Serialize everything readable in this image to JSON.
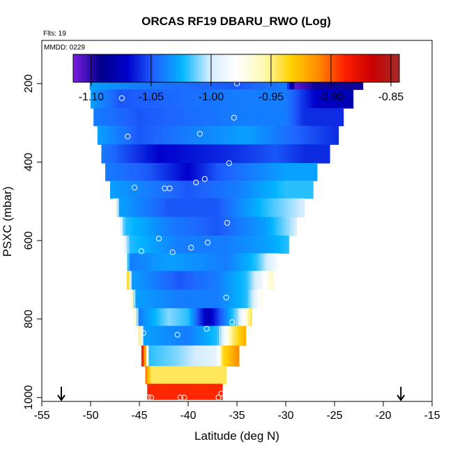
{
  "chart_data": {
    "type": "heatmap",
    "title": "ORCAS RF19 DBARU_RWO (Log)",
    "flights_label": "Flts: 19",
    "date_label": "MMDD: 0229",
    "xlabel": "Latitude (deg N)",
    "ylabel": "PSXC (mbar)",
    "xlim": [
      -55,
      -15
    ],
    "ylim": [
      1010,
      90
    ],
    "x_ticks": [
      "-55",
      "-50",
      "-45",
      "-40",
      "-35",
      "-30",
      "-25",
      "-20",
      "-15"
    ],
    "y_ticks": [
      "200",
      "400",
      "600",
      "800",
      "1000"
    ],
    "colorbar": {
      "range": [
        -1.115,
        -0.843
      ],
      "tick_values": [
        -1.1,
        -1.05,
        -1.0,
        -0.95,
        -0.9,
        -0.85
      ],
      "tick_labels": [
        "-1.10",
        "-1.05",
        "-1.00",
        "-0.95",
        "-0.90",
        "-0.85"
      ],
      "colors": [
        "#7a1fe0",
        "#00008b",
        "#0000cd",
        "#1e64ff",
        "#00b4ff",
        "#d2ecff",
        "#ffffff",
        "#fffab4",
        "#ffd200",
        "#ff8c00",
        "#ff1e00",
        "#c80000",
        "#a52a2a"
      ]
    },
    "arrows": [
      -53,
      -18.2
    ],
    "rows": [
      {
        "p": 190,
        "x0": -50.1,
        "x1": -22.1,
        "stops": [
          [
            -50.1,
            -1.03
          ],
          [
            -45,
            -1.04
          ],
          [
            -35,
            -1.05
          ],
          [
            -30,
            -1.04
          ],
          [
            -29,
            -1.11
          ],
          [
            -27,
            -1.095
          ],
          [
            -22.1,
            -1.095
          ]
        ]
      },
      {
        "p": 240,
        "x0": -50.0,
        "x1": -23.1,
        "stops": [
          [
            -50,
            -1.03
          ],
          [
            -47,
            -1.05
          ],
          [
            -35,
            -1.04
          ],
          [
            -30,
            -1.04
          ],
          [
            -27,
            -1.07
          ],
          [
            -23.1,
            -1.08
          ]
        ]
      },
      {
        "p": 285,
        "x0": -49.7,
        "x1": -24.1,
        "stops": [
          [
            -49.7,
            -1.04
          ],
          [
            -45,
            -1.05
          ],
          [
            -35,
            -1.04
          ],
          [
            -30,
            -1.04
          ],
          [
            -28,
            -1.06
          ],
          [
            -24.1,
            -1.06
          ]
        ]
      },
      {
        "p": 330,
        "x0": -49.3,
        "x1": -24.6,
        "stops": [
          [
            -49.3,
            -1.03
          ],
          [
            -45,
            -1.05
          ],
          [
            -40,
            -1.04
          ],
          [
            -34,
            -1.03
          ],
          [
            -28,
            -1.05
          ],
          [
            -24.6,
            -1.06
          ]
        ]
      },
      {
        "p": 380,
        "x0": -48.9,
        "x1": -25.5,
        "stops": [
          [
            -48.9,
            -1.04
          ],
          [
            -43,
            -1.07
          ],
          [
            -36,
            -1.06
          ],
          [
            -31,
            -1.05
          ],
          [
            -28,
            -1.06
          ],
          [
            -25.5,
            -1.06
          ]
        ]
      },
      {
        "p": 425,
        "x0": -48.5,
        "x1": -26.8,
        "stops": [
          [
            -48.5,
            -1.04
          ],
          [
            -44,
            -1.05
          ],
          [
            -40,
            -1.07
          ],
          [
            -37,
            -1.05
          ],
          [
            -30,
            -1.03
          ],
          [
            -26.8,
            -1.03
          ]
        ]
      },
      {
        "p": 470,
        "x0": -48.0,
        "x1": -27.2,
        "stops": [
          [
            -48,
            -1.03
          ],
          [
            -44,
            -1.04
          ],
          [
            -40,
            -1.05
          ],
          [
            -35,
            -1.04
          ],
          [
            -30,
            -1.02
          ],
          [
            -27.2,
            -1.02
          ]
        ]
      },
      {
        "p": 515,
        "x0": -47.6,
        "x1": -28.1,
        "stops": [
          [
            -47.6,
            -0.96
          ],
          [
            -47,
            -1.03
          ],
          [
            -42,
            -1.05
          ],
          [
            -37,
            -1.05
          ],
          [
            -32,
            -1.02
          ],
          [
            -28.1,
            -1.0
          ]
        ]
      },
      {
        "p": 565,
        "x0": -47.2,
        "x1": -28.9,
        "stops": [
          [
            -47.2,
            -0.97
          ],
          [
            -46.5,
            -1.02
          ],
          [
            -42,
            -1.04
          ],
          [
            -37,
            -1.05
          ],
          [
            -32,
            -1.03
          ],
          [
            -28.9,
            -1.0
          ]
        ]
      },
      {
        "p": 610,
        "x0": -46.8,
        "x1": -29.7,
        "stops": [
          [
            -46.8,
            -0.97
          ],
          [
            -46,
            -1.02
          ],
          [
            -41,
            -1.04
          ],
          [
            -36,
            -1.04
          ],
          [
            -32,
            -1.03
          ],
          [
            -29.7,
            -1.02
          ]
        ]
      },
      {
        "p": 655,
        "x0": -46.5,
        "x1": -30.7,
        "stops": [
          [
            -46.5,
            -0.96
          ],
          [
            -46,
            -1.04
          ],
          [
            -42,
            -1.03
          ],
          [
            -36,
            -1.04
          ],
          [
            -33,
            -1.02
          ],
          [
            -30.7,
            -0.98
          ]
        ]
      },
      {
        "p": 700,
        "x0": -46.3,
        "x1": -31.3,
        "stops": [
          [
            -46.3,
            -0.91
          ],
          [
            -45.8,
            -1.03
          ],
          [
            -41,
            -1.05
          ],
          [
            -37,
            -1.04
          ],
          [
            -34,
            -1.02
          ],
          [
            -31.3,
            -0.96
          ]
        ]
      },
      {
        "p": 750,
        "x0": -45.9,
        "x1": -32.4,
        "stops": [
          [
            -45.9,
            -0.94
          ],
          [
            -45.4,
            -1.03
          ],
          [
            -41,
            -1.04
          ],
          [
            -37,
            -1.04
          ],
          [
            -34,
            -1.02
          ],
          [
            -32.4,
            -0.97
          ]
        ]
      },
      {
        "p": 795,
        "x0": -45.6,
        "x1": -33.5,
        "stops": [
          [
            -45.6,
            -0.95
          ],
          [
            -45,
            -1.04
          ],
          [
            -42,
            -1.01
          ],
          [
            -40,
            -1.02
          ],
          [
            -38,
            -1.08
          ],
          [
            -35,
            -1.01
          ],
          [
            -33.5,
            -0.94
          ]
        ]
      },
      {
        "p": 840,
        "x0": -45.1,
        "x1": -34.1,
        "stops": [
          [
            -45.1,
            -0.93
          ],
          [
            -44.5,
            -1.03
          ],
          [
            -40,
            -1.04
          ],
          [
            -37,
            -1.02
          ],
          [
            -35.5,
            -0.95
          ],
          [
            -34.1,
            -0.92
          ]
        ]
      },
      {
        "p": 895,
        "x0": -44.8,
        "x1": -34.8,
        "stops": [
          [
            -44.8,
            -0.875
          ],
          [
            -44.4,
            -0.92
          ],
          [
            -44,
            -1.02
          ],
          [
            -41,
            -1.01
          ],
          [
            -37,
            -0.99
          ],
          [
            -36.5,
            -0.94
          ],
          [
            -34.8,
            -0.91
          ]
        ]
      },
      {
        "p": 945,
        "x0": -44.4,
        "x1": -36.1,
        "stops": [
          [
            -44.4,
            -0.9
          ],
          [
            -43.8,
            -0.945
          ],
          [
            -40,
            -0.945
          ],
          [
            -36.1,
            -0.945
          ]
        ]
      },
      {
        "p": 985,
        "x0": -44.2,
        "x1": -36.5,
        "stops": [
          [
            -44.2,
            -0.89
          ],
          [
            -40,
            -0.89
          ],
          [
            -36.5,
            -0.89
          ]
        ]
      }
    ],
    "points": [
      [
        -49.8,
        190
      ],
      [
        -49.3,
        190
      ],
      [
        -48.8,
        190
      ],
      [
        -48.2,
        190
      ],
      [
        -47.7,
        190
      ],
      [
        -47.2,
        190
      ],
      [
        -46.6,
        190
      ],
      [
        -35.0,
        200
      ],
      [
        -34.6,
        190
      ],
      [
        -34.1,
        190
      ],
      [
        -33.6,
        190
      ],
      [
        -33.0,
        190
      ],
      [
        -32.4,
        190
      ],
      [
        -31.8,
        190
      ],
      [
        -31.2,
        190
      ],
      [
        -30.6,
        190
      ],
      [
        -30.1,
        190
      ],
      [
        -29.6,
        190
      ],
      [
        -29.0,
        190
      ],
      [
        -28.4,
        190
      ],
      [
        -27.8,
        190
      ],
      [
        -27.2,
        190
      ],
      [
        -26.6,
        190
      ],
      [
        -26.0,
        190
      ],
      [
        -25.4,
        190
      ],
      [
        -24.8,
        190
      ],
      [
        -24.2,
        190
      ],
      [
        -23.6,
        190
      ],
      [
        -22.9,
        190
      ],
      [
        -46.8,
        237
      ],
      [
        -35.3,
        287
      ],
      [
        -46.2,
        335
      ],
      [
        -38.8,
        328
      ],
      [
        -35.8,
        403
      ],
      [
        -38.3,
        443
      ],
      [
        -39.2,
        452
      ],
      [
        -45.5,
        465
      ],
      [
        -42.4,
        467
      ],
      [
        -41.9,
        467
      ],
      [
        -36.0,
        555
      ],
      [
        -43.0,
        595
      ],
      [
        -44.8,
        627
      ],
      [
        -39.7,
        618
      ],
      [
        -38.0,
        605
      ],
      [
        -41.6,
        630
      ],
      [
        -36.1,
        745
      ],
      [
        -38.1,
        825
      ],
      [
        -35.5,
        808
      ],
      [
        -41.1,
        840
      ],
      [
        -44.6,
        836
      ],
      [
        -44.1,
        1000
      ],
      [
        -43.8,
        1000
      ],
      [
        -40.8,
        1000
      ],
      [
        -40.4,
        1000
      ],
      [
        -36.9,
        1000
      ],
      [
        -36.6,
        990
      ]
    ]
  }
}
